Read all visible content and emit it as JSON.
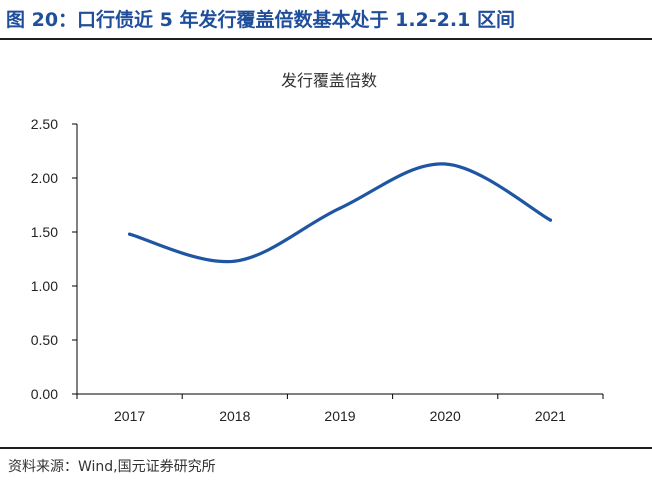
{
  "figure_title": "图 20：口行债近 5 年发行覆盖倍数基本处于 1.2-2.1 区间",
  "source_note": "资料来源：Wind,国元证券研究所",
  "chart_data": {
    "type": "line",
    "title": "发行覆盖倍数",
    "categories": [
      "2017",
      "2018",
      "2019",
      "2020",
      "2021"
    ],
    "series": [
      {
        "values": [
          1.48,
          1.23,
          1.72,
          2.13,
          1.61
        ]
      }
    ],
    "ylim": [
      0,
      2.5
    ],
    "yticks": [
      "0.00",
      "0.50",
      "1.00",
      "1.50",
      "2.00",
      "2.50"
    ],
    "smooth": true,
    "grid": false,
    "legend": "none",
    "line_color": "#1f56a3",
    "title_color": "#1f4e9a"
  }
}
